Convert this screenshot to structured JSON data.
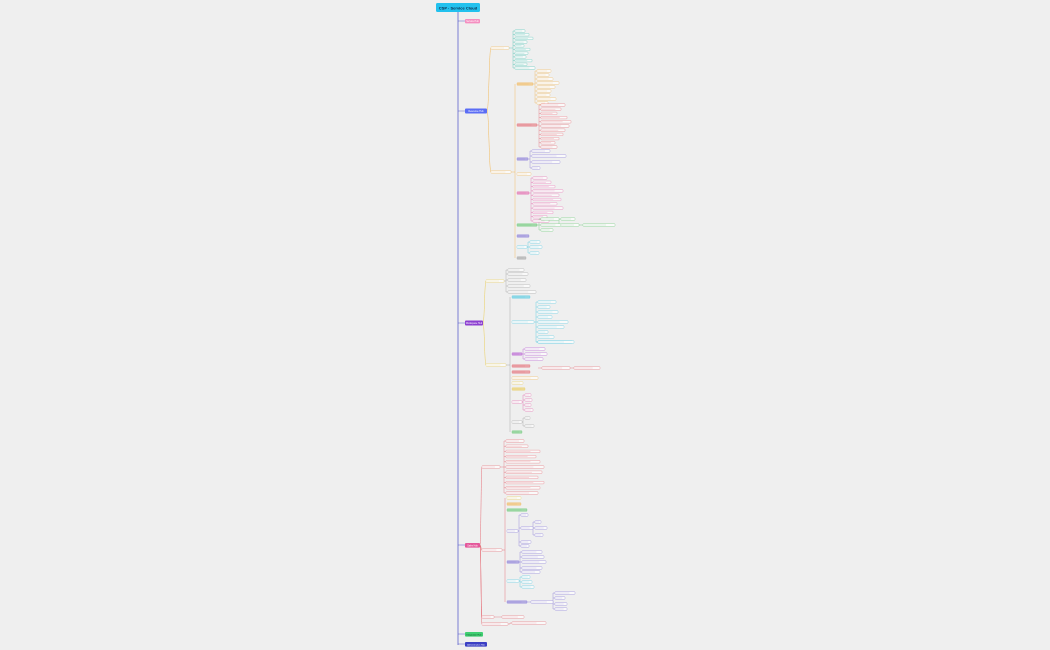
{
  "root": {
    "label": "CSP · Service Cloud",
    "color": "#22c1ee"
  },
  "sections": [
    {
      "label": "Service Hub",
      "color": "#f58ec0"
    },
    {
      "label": "Resource Hub",
      "color": "#5b6df5"
    },
    {
      "label": "Workspace Hub",
      "color": "#8c3fd0"
    },
    {
      "label": "Sales Hub",
      "color": "#e4579a"
    },
    {
      "label": "Integration Hub",
      "color": "#3fcf72"
    },
    {
      "label": "Administration Hub",
      "color": "#3b3fc4"
    }
  ],
  "colors": {
    "spine": "#4a4fc8",
    "orange": "#f2b24a",
    "teal": "#3cbfae",
    "red": "#e4606a",
    "purple": "#7e6fd6",
    "pink": "#e25aa6",
    "green": "#5dc46a",
    "gray": "#9a9a9a",
    "cyan": "#44c6e0",
    "yellow": "#e9c94a",
    "magenta": "#b24fd0"
  }
}
